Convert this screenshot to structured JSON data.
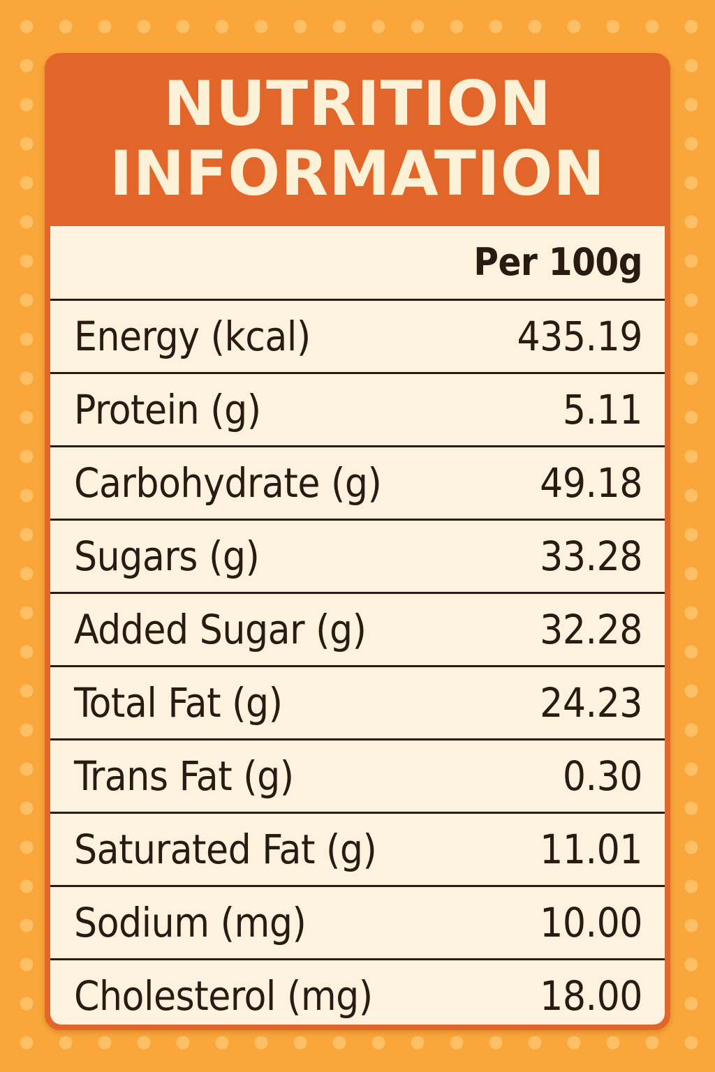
{
  "title": {
    "line1": "NUTRITION",
    "line2": "INFORMATION"
  },
  "column_header": "Per 100g",
  "nutrients": [
    {
      "label": "Energy (kcal)",
      "value": "435.19"
    },
    {
      "label": "Protein (g)",
      "value": "5.11"
    },
    {
      "label": "Carbohydrate (g)",
      "value": "49.18"
    },
    {
      "label": "Sugars (g)",
      "value": "33.28"
    },
    {
      "label": "Added Sugar (g)",
      "value": "32.28"
    },
    {
      "label": "Total Fat (g)",
      "value": "24.23"
    },
    {
      "label": "Trans Fat (g)",
      "value": "0.30"
    },
    {
      "label": "Saturated Fat (g)",
      "value": "11.01"
    },
    {
      "label": "Sodium (mg)",
      "value": "10.00"
    },
    {
      "label": "Cholesterol (mg)",
      "value": "18.00"
    }
  ],
  "colors": {
    "page_background": "#fba63a",
    "header_band": "#e2662a",
    "title_text": "#fdf2d8",
    "table_background": "#fdf2de",
    "text": "#2a1a12"
  }
}
